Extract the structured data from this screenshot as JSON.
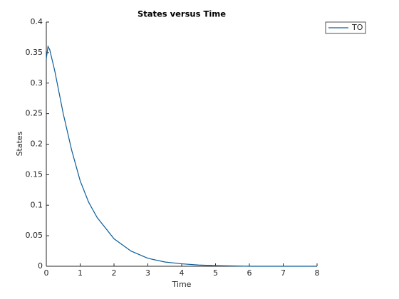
{
  "chart_data": {
    "type": "line",
    "title": "States versus Time",
    "xlabel": "Time",
    "ylabel": "States",
    "x": [
      0,
      0.05,
      0.1,
      0.25,
      0.5,
      0.75,
      1,
      1.25,
      1.5,
      2,
      2.5,
      3,
      3.5,
      4,
      4.5,
      5,
      6,
      7,
      8
    ],
    "series": [
      {
        "name": "TO",
        "color": "#0b5d9a",
        "values": [
          0.34,
          0.36,
          0.355,
          0.32,
          0.25,
          0.19,
          0.14,
          0.105,
          0.08,
          0.045,
          0.025,
          0.013,
          0.007,
          0.004,
          0.002,
          0.001,
          0,
          0,
          0
        ]
      }
    ],
    "xlim": [
      0,
      8
    ],
    "ylim": [
      0,
      0.4
    ],
    "xticks": [
      0,
      1,
      2,
      3,
      4,
      5,
      6,
      7,
      8
    ],
    "yticks": [
      0,
      0.05,
      0.1,
      0.15,
      0.2,
      0.25,
      0.3,
      0.35,
      0.4
    ],
    "grid": false,
    "legend": "top-right"
  }
}
